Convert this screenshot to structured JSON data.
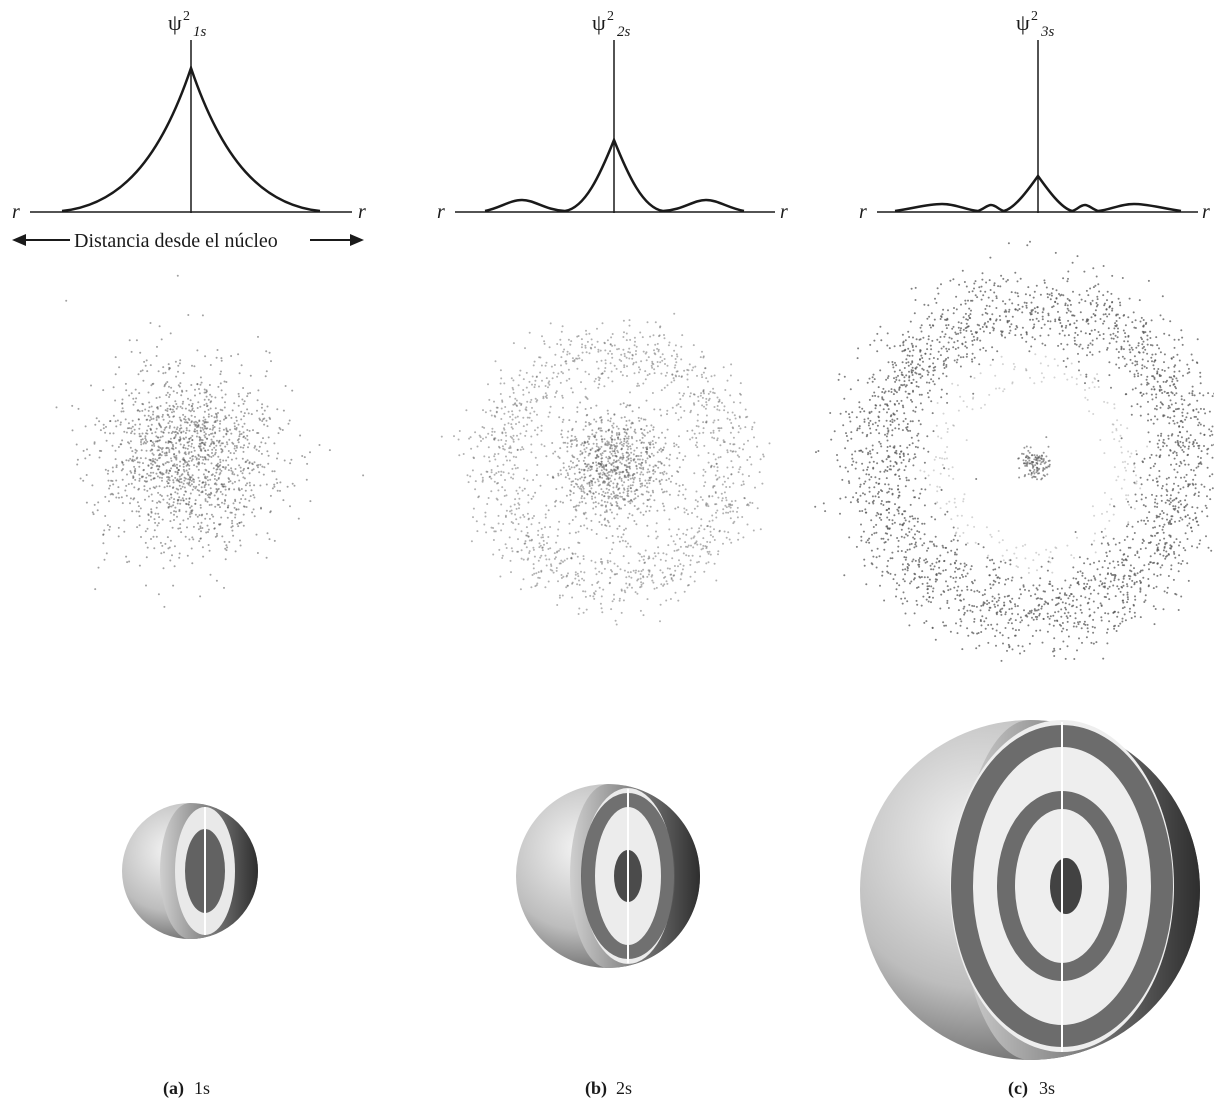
{
  "panels": [
    {
      "id": "1s",
      "psi_symbol": "ψ",
      "psi_exponent": "2",
      "psi_subscript": "1s",
      "axis_left": "r",
      "axis_right": "r",
      "caption_letter": "(a)",
      "caption_orbital": "1s",
      "nodes": 0
    },
    {
      "id": "2s",
      "psi_symbol": "ψ",
      "psi_exponent": "2",
      "psi_subscript": "2s",
      "axis_left": "r",
      "axis_right": "r",
      "caption_letter": "(b)",
      "caption_orbital": "2s",
      "nodes": 1
    },
    {
      "id": "3s",
      "psi_symbol": "ψ",
      "psi_exponent": "2",
      "psi_subscript": "3s",
      "axis_left": "r",
      "axis_right": "r",
      "caption_letter": "(c)",
      "caption_orbital": "3s",
      "nodes": 2
    }
  ],
  "distance_label": "Distancia desde el núcleo",
  "colors": {
    "ink": "#1a1a1a",
    "dots": "#555555",
    "sphere_light": "#f2f2f2",
    "sphere_dark": "#3a3a3a"
  }
}
